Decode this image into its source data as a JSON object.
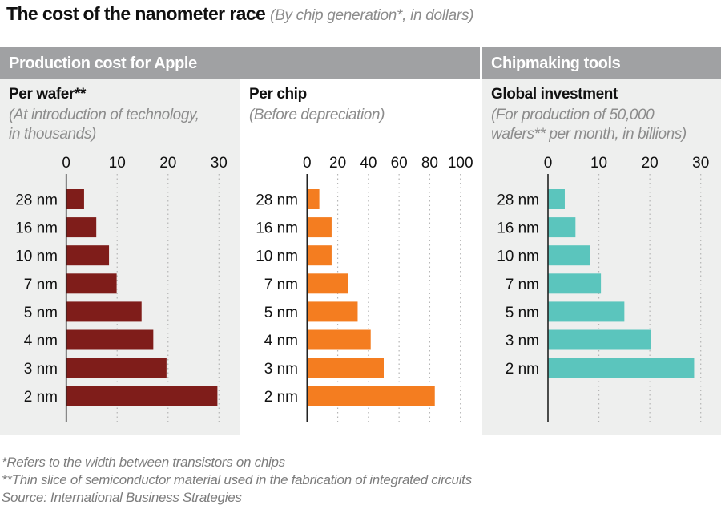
{
  "title": "The cost of the nanometer race",
  "subtitle": "(By chip generation*, in dollars)",
  "section_headers": {
    "left": "Production cost for Apple",
    "right": "Chipmaking tools"
  },
  "footnotes": [
    "*Refers to the width between transistors on chips",
    "**Thin slice of semiconductor material used in the fabrication of integrated circuits",
    "Source: International Business Strategies"
  ],
  "colors": {
    "wafer": "#7f1d1a",
    "chip": "#f47d20",
    "tools": "#5bc5bd",
    "header": "#a0a1a3",
    "panel_bg": "#eeefee"
  },
  "chart_data": [
    {
      "id": "per-wafer",
      "type": "bar",
      "orientation": "horizontal",
      "title": "Per wafer**",
      "subtitle": "(At introduction of technology,\nin thousands)",
      "categories": [
        "28 nm",
        "16 nm",
        "10 nm",
        "7 nm",
        "5 nm",
        "4 nm",
        "3 nm",
        "2 nm"
      ],
      "values": [
        3.5,
        5.9,
        8.4,
        9.9,
        14.8,
        17.1,
        19.7,
        29.7
      ],
      "xlim": [
        0,
        30
      ],
      "xticks": [
        0,
        10,
        20,
        30
      ],
      "grid": true,
      "color_key": "wafer"
    },
    {
      "id": "per-chip",
      "type": "bar",
      "orientation": "horizontal",
      "title": "Per chip",
      "subtitle": "(Before depreciation)",
      "categories": [
        "28 nm",
        "16 nm",
        "10 nm",
        "7 nm",
        "5 nm",
        "4 nm",
        "3 nm",
        "2 nm"
      ],
      "values": [
        8,
        16,
        16,
        27,
        33,
        41.5,
        50,
        83.3
      ],
      "xlim": [
        0,
        100
      ],
      "xticks": [
        0,
        20,
        40,
        60,
        80,
        100
      ],
      "grid": true,
      "color_key": "chip"
    },
    {
      "id": "global-investment",
      "type": "bar",
      "orientation": "horizontal",
      "title": "Global investment",
      "subtitle": "(For production of 50,000\nwafers** per month, in billions)",
      "categories": [
        "28 nm",
        "16 nm",
        "10 nm",
        "7 nm",
        "5 nm",
        "3 nm",
        "2 nm"
      ],
      "values": [
        3.3,
        5.4,
        8.2,
        10.4,
        15,
        20.2,
        28.7
      ],
      "xlim": [
        0,
        30
      ],
      "xticks": [
        0,
        10,
        20,
        30
      ],
      "grid": true,
      "color_key": "tools"
    }
  ]
}
